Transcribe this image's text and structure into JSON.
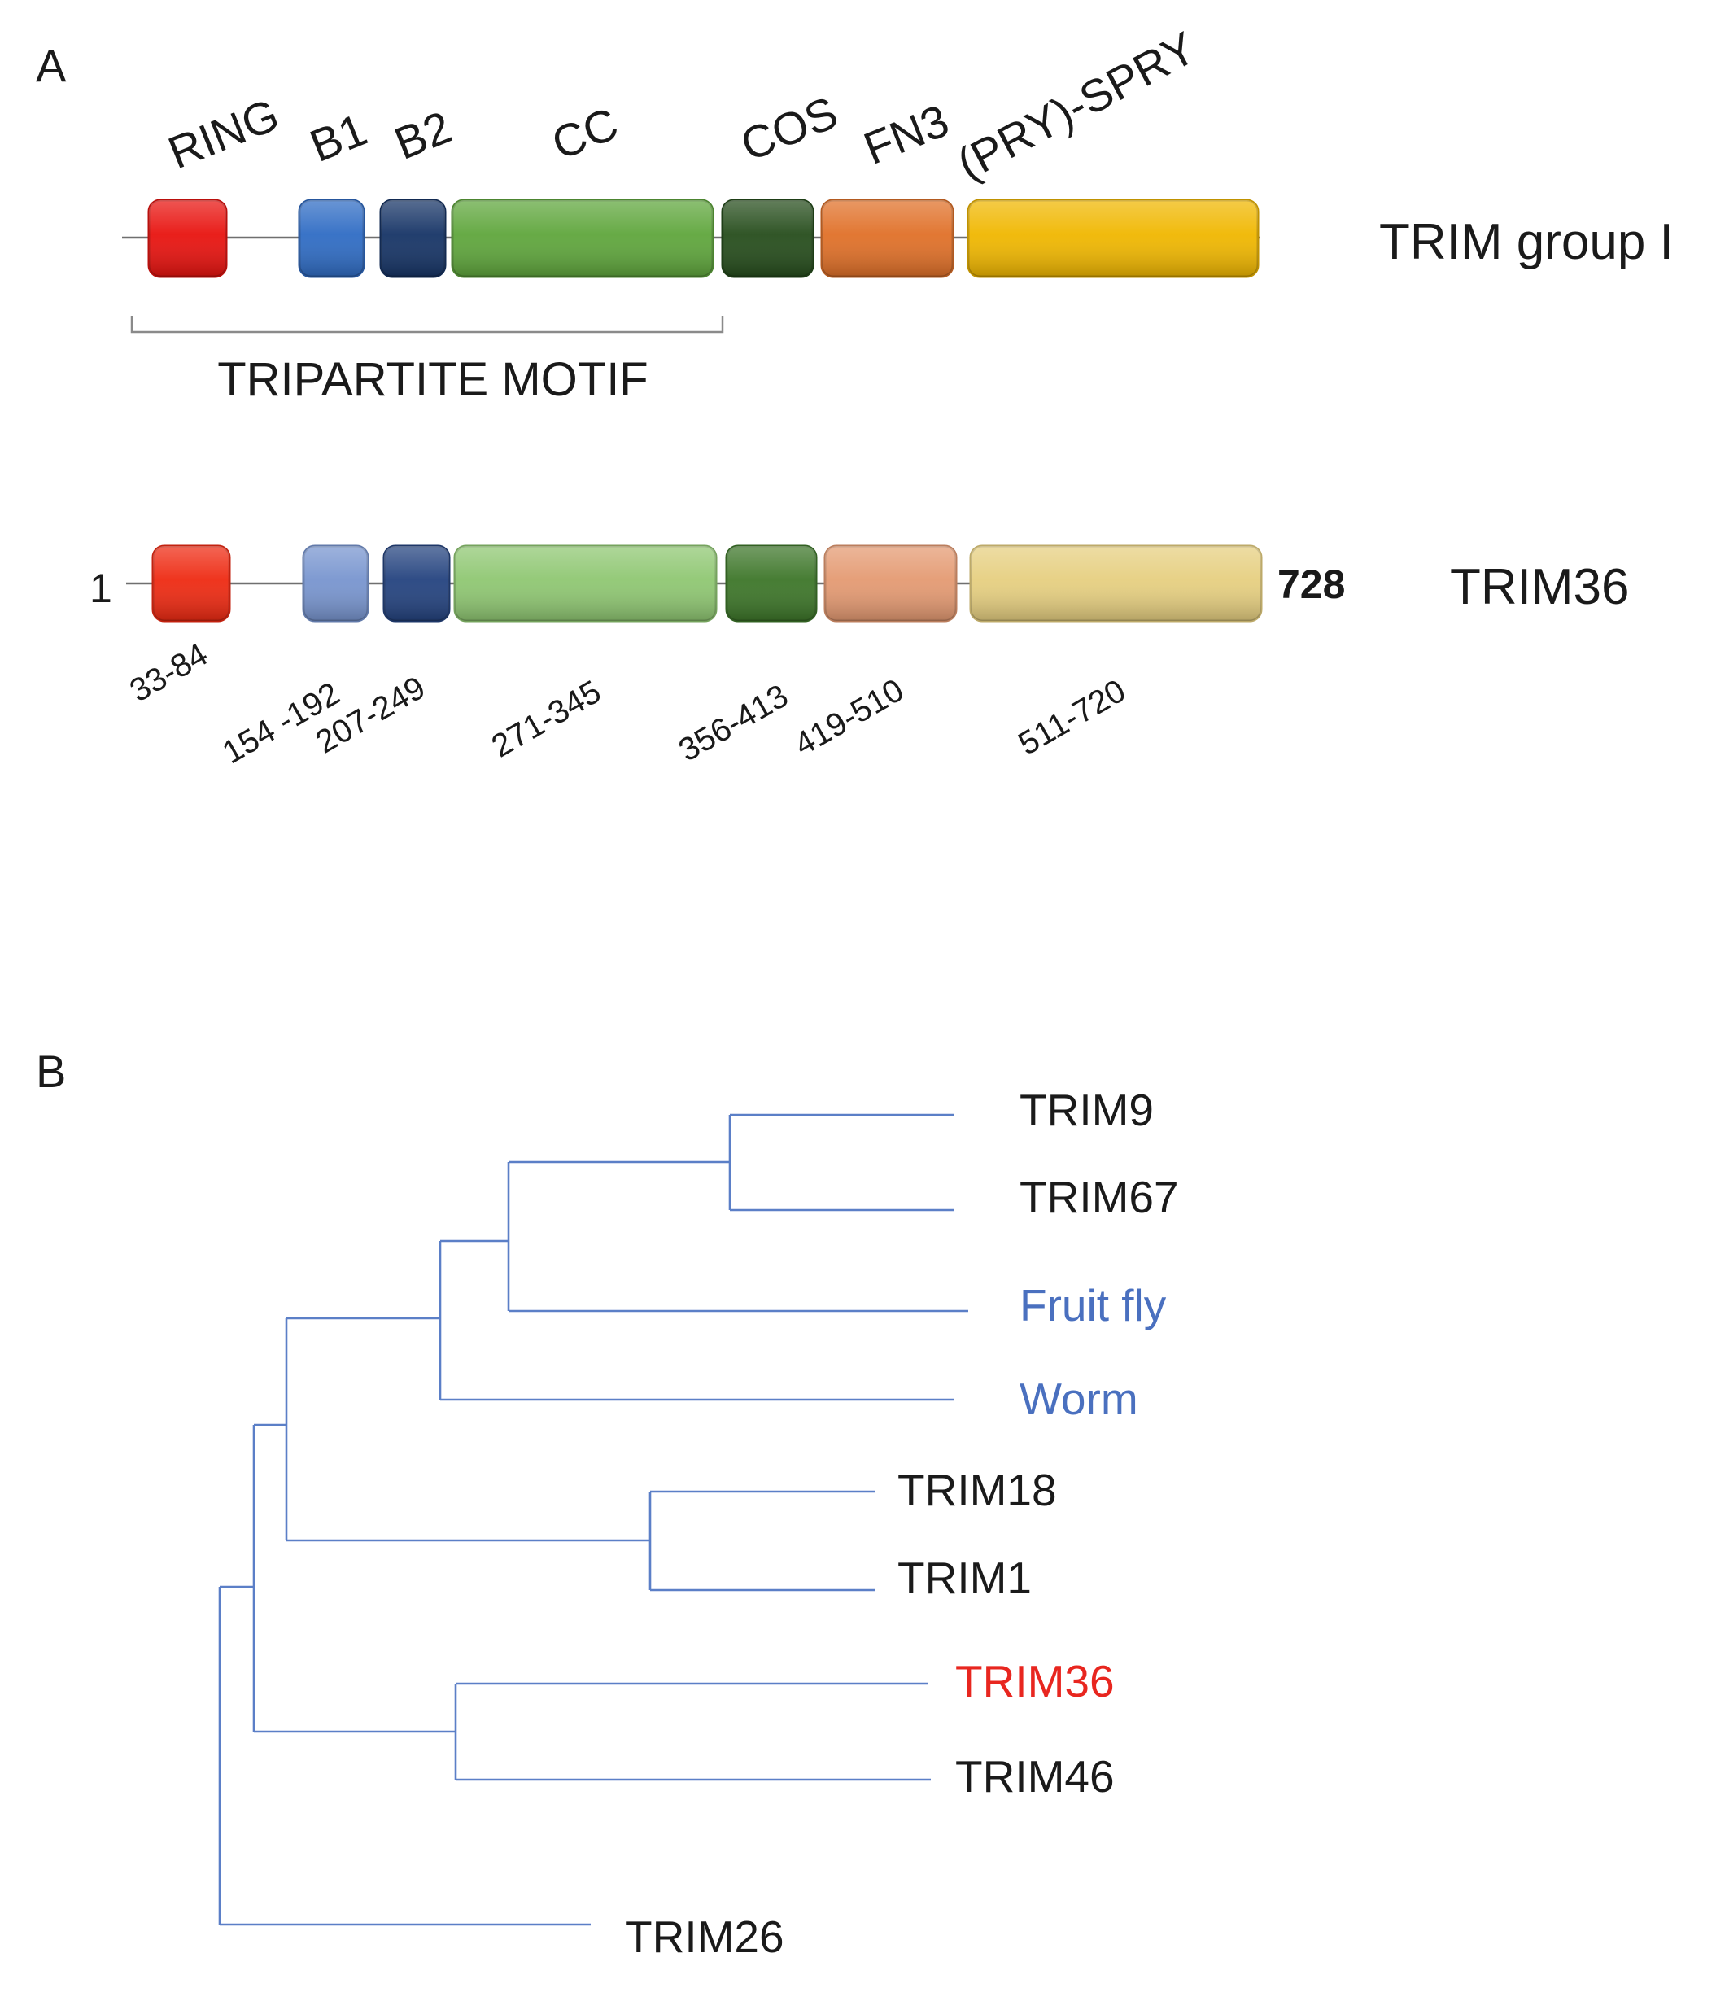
{
  "panel_a": {
    "letter": "A",
    "group_label": "TRIM group I",
    "motif_label": "TRIPARTITE MOTIF",
    "domains": [
      {
        "name": "RING",
        "color": "#e8130f"
      },
      {
        "name": "B1",
        "color": "#2f6cc4"
      },
      {
        "name": "B2",
        "color": "#163466"
      },
      {
        "name": "CC",
        "color": "#5fa63c"
      },
      {
        "name": "COS",
        "color": "#264d1c"
      },
      {
        "name": "FN3",
        "color": "#e07028"
      },
      {
        "name": "(PRY)-SPRY",
        "color": "#f0b700"
      }
    ],
    "trim36": {
      "label": "TRIM36",
      "start": "1",
      "end": "728",
      "domains": [
        {
          "name": "RING",
          "range": "33-84",
          "color": "#ee2a12"
        },
        {
          "name": "B1",
          "range": "154 -192",
          "color": "#7895cf"
        },
        {
          "name": "B2",
          "range": "207-249",
          "color": "#24437f"
        },
        {
          "name": "CC",
          "range": "271-345",
          "color": "#8fc772"
        },
        {
          "name": "COS",
          "range": "356-413",
          "color": "#3d7629"
        },
        {
          "name": "FN3",
          "range": "419-510",
          "color": "#e49a72"
        },
        {
          "name": "(PRY)-SPRY",
          "range": "511-720",
          "color": "#e6cf80"
        }
      ]
    }
  },
  "panel_b": {
    "letter": "B",
    "tree_color": "#5b7fc7",
    "leaves": [
      {
        "name": "TRIM9",
        "color": "#1a1a1a"
      },
      {
        "name": "TRIM67",
        "color": "#1a1a1a"
      },
      {
        "name": "Fruit fly",
        "color": "#4a70bf"
      },
      {
        "name": "Worm",
        "color": "#4a70bf"
      },
      {
        "name": "TRIM18",
        "color": "#1a1a1a"
      },
      {
        "name": "TRIM1",
        "color": "#1a1a1a"
      },
      {
        "name": "TRIM36",
        "color": "#e8261f"
      },
      {
        "name": "TRIM46",
        "color": "#1a1a1a"
      },
      {
        "name": "TRIM26",
        "color": "#1a1a1a"
      }
    ]
  }
}
